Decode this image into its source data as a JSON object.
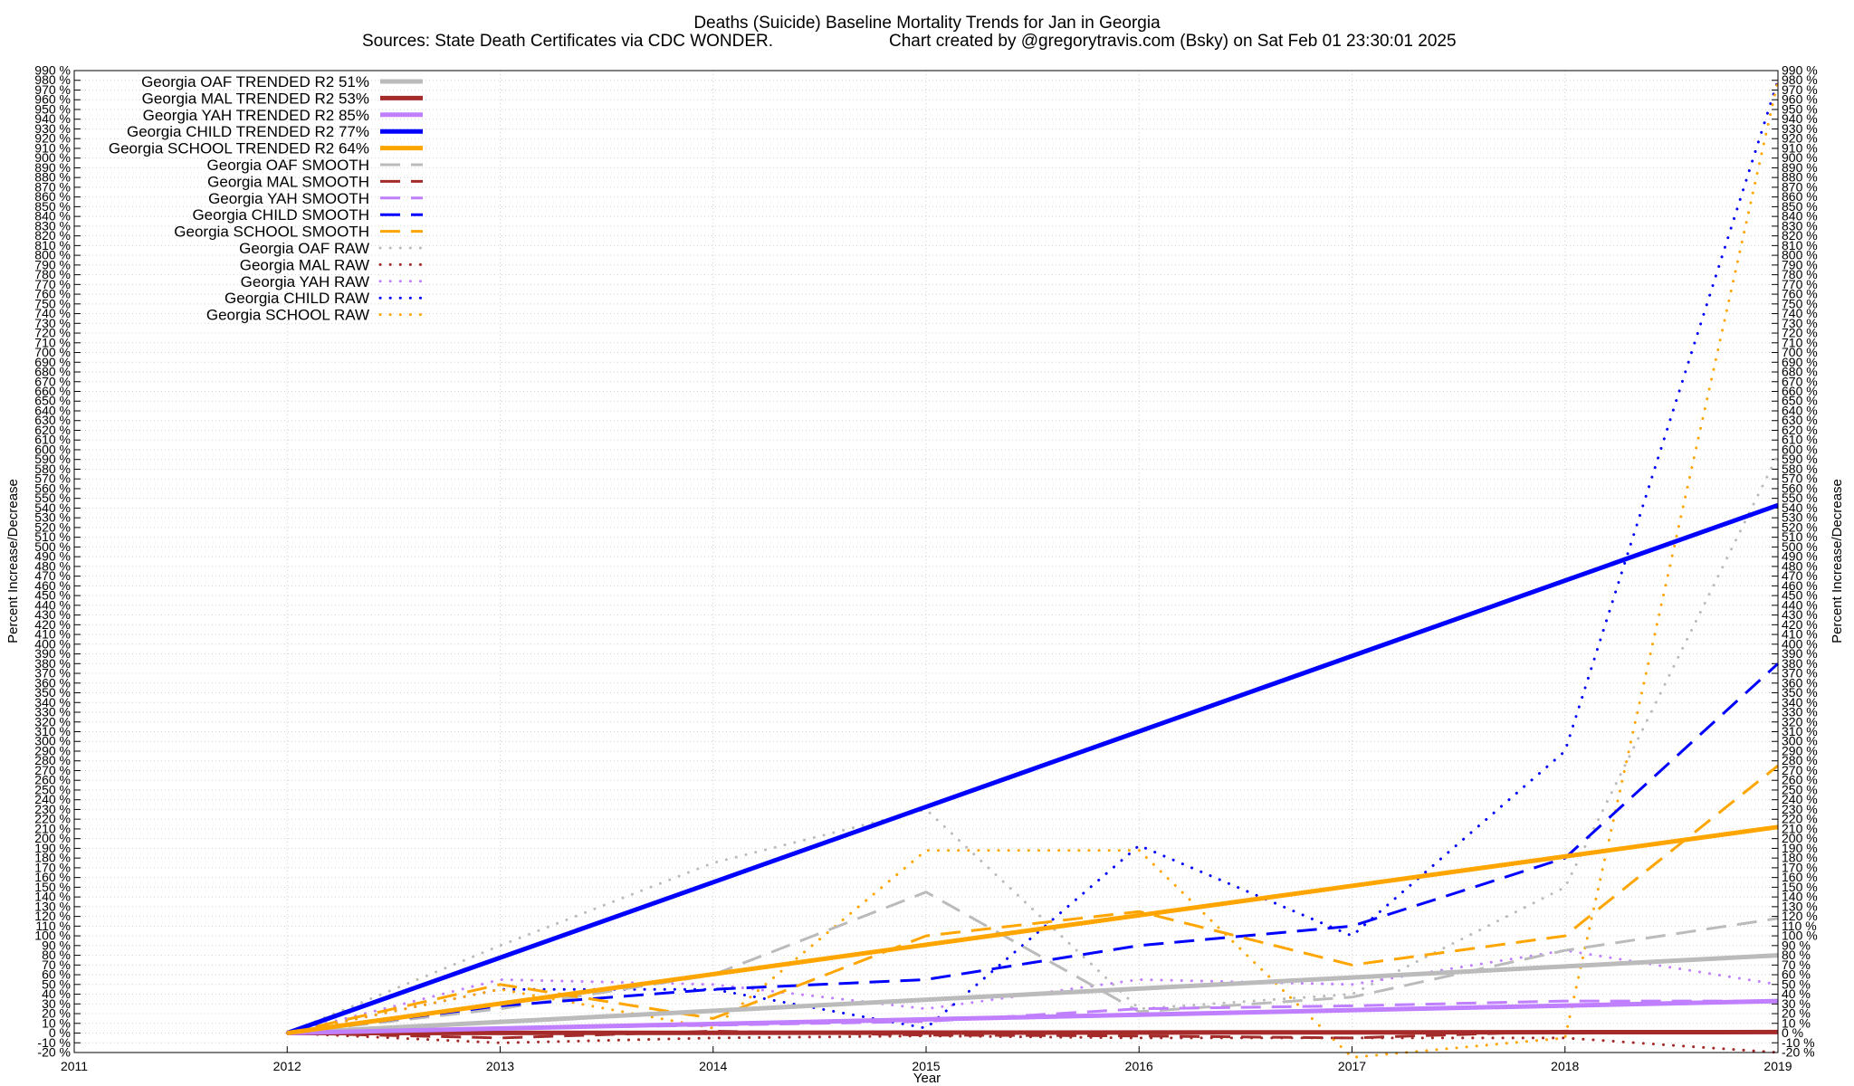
{
  "chart_data": {
    "type": "line",
    "title": "Deaths (Suicide)  Baseline Mortality Trends for Jan in Georgia",
    "subtitle_left": "Sources: State Death Certificates via CDC WONDER.",
    "subtitle_right": "Chart created by @gregorytravis.com (Bsky) on Sat Feb 01 23:30:01 2025",
    "xlabel": "Year",
    "ylabel": "Percent Increase/Decrease",
    "xlim": [
      2011,
      2019
    ],
    "ylim": [
      -20,
      990
    ],
    "x_ticks": [
      "2011",
      "2012",
      "2013",
      "2014",
      "2015",
      "2016",
      "2017",
      "2018",
      "2019"
    ],
    "y_tick_step": 10,
    "y_tick_suffix": " %",
    "grid": true,
    "legend_position": "top-left",
    "series": [
      {
        "name": "Georgia OAF TRENDED R2  51%",
        "style": "solid",
        "color": "#bbbbbb",
        "x": [
          2012,
          2019
        ],
        "values": [
          0,
          80
        ]
      },
      {
        "name": "Georgia MAL TRENDED R2  53%",
        "style": "solid",
        "color": "#a52a2a",
        "x": [
          2012,
          2019
        ],
        "values": [
          0,
          1
        ]
      },
      {
        "name": "Georgia YAH TRENDED R2  85%",
        "style": "solid",
        "color": "#bf7fff",
        "x": [
          2012,
          2019
        ],
        "values": [
          0,
          33
        ]
      },
      {
        "name": "Georgia CHILD TRENDED R2  77%",
        "style": "solid",
        "color": "#0000ff",
        "x": [
          2012,
          2019
        ],
        "values": [
          0,
          543
        ]
      },
      {
        "name": "Georgia SCHOOL TRENDED R2  64%",
        "style": "solid",
        "color": "#ffa500",
        "x": [
          2012,
          2019
        ],
        "values": [
          0,
          212
        ]
      },
      {
        "name": "Georgia OAF SMOOTH",
        "style": "dashed",
        "color": "#bbbbbb",
        "x": [
          2012,
          2013,
          2014,
          2015,
          2016,
          2017,
          2018,
          2019
        ],
        "values": [
          0,
          25,
          60,
          145,
          22,
          37,
          85,
          118
        ]
      },
      {
        "name": "Georgia MAL SMOOTH",
        "style": "dashed",
        "color": "#a52a2a",
        "x": [
          2012,
          2013,
          2014,
          2015,
          2016,
          2017,
          2018,
          2019
        ],
        "values": [
          0,
          -5,
          2,
          -2,
          -3,
          -5,
          2,
          1
        ]
      },
      {
        "name": "Georgia YAH SMOOTH",
        "style": "dashed",
        "color": "#bf7fff",
        "x": [
          2012,
          2013,
          2014,
          2015,
          2016,
          2017,
          2018,
          2019
        ],
        "values": [
          0,
          5,
          8,
          12,
          25,
          28,
          33,
          33
        ]
      },
      {
        "name": "Georgia CHILD SMOOTH",
        "style": "dashed",
        "color": "#0000ff",
        "x": [
          2012,
          2013,
          2014,
          2015,
          2016,
          2017,
          2018,
          2019
        ],
        "values": [
          0,
          28,
          45,
          55,
          90,
          110,
          180,
          380
        ]
      },
      {
        "name": "Georgia SCHOOL SMOOTH",
        "style": "dashed",
        "color": "#ffa500",
        "x": [
          2012,
          2013,
          2014,
          2015,
          2016,
          2017,
          2018,
          2019
        ],
        "values": [
          0,
          50,
          15,
          100,
          125,
          70,
          100,
          275
        ]
      },
      {
        "name": "Georgia OAF RAW",
        "style": "dotted",
        "color": "#bbbbbb",
        "x": [
          2012,
          2013,
          2014,
          2015,
          2016,
          2017,
          2018,
          2019
        ],
        "values": [
          0,
          90,
          175,
          230,
          25,
          40,
          150,
          595
        ]
      },
      {
        "name": "Georgia MAL RAW",
        "style": "dotted",
        "color": "#a52a2a",
        "x": [
          2012,
          2013,
          2014,
          2015,
          2016,
          2017,
          2018,
          2019
        ],
        "values": [
          0,
          -10,
          -5,
          -3,
          -5,
          -5,
          -5,
          -20
        ]
      },
      {
        "name": "Georgia YAH RAW",
        "style": "dotted",
        "color": "#bf7fff",
        "x": [
          2012,
          2013,
          2014,
          2015,
          2016,
          2017,
          2018,
          2019
        ],
        "values": [
          0,
          55,
          50,
          25,
          55,
          50,
          85,
          50
        ]
      },
      {
        "name": "Georgia CHILD RAW",
        "style": "dotted",
        "color": "#0000ff",
        "x": [
          2012,
          2013,
          2014,
          2015,
          2016,
          2017,
          2018,
          2019
        ],
        "values": [
          0,
          45,
          45,
          5,
          193,
          100,
          290,
          980
        ]
      },
      {
        "name": "Georgia SCHOOL RAW",
        "style": "dotted",
        "color": "#ffa500",
        "x": [
          2012,
          2013,
          2014,
          2015,
          2016,
          2017,
          2018,
          2019
        ],
        "values": [
          0,
          45,
          5,
          188,
          188,
          -25,
          -5,
          980
        ]
      }
    ]
  }
}
